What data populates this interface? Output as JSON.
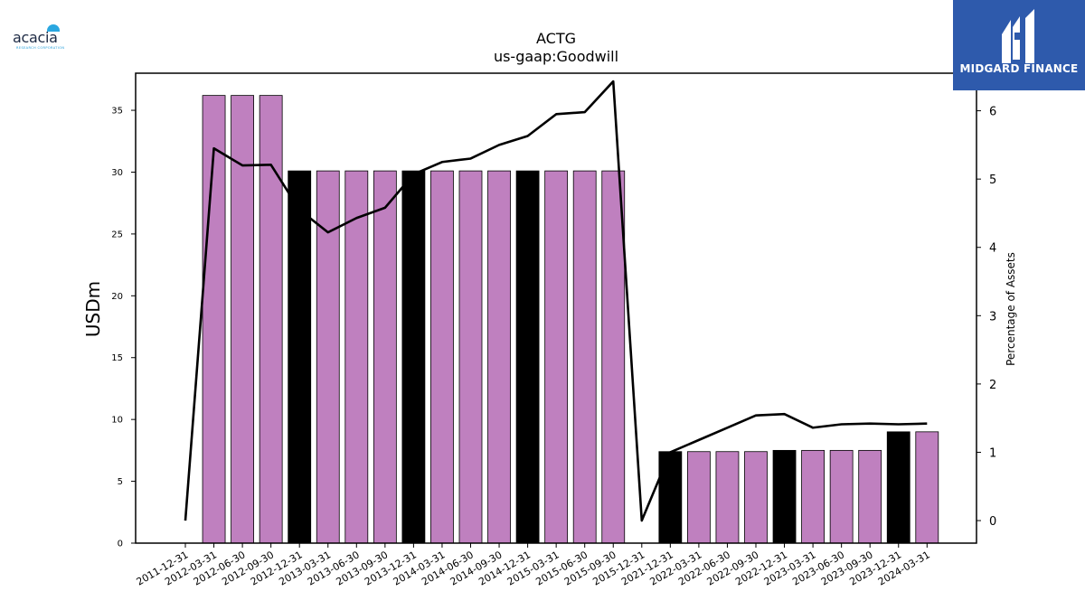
{
  "chart_data": {
    "type": "bar",
    "title": "ACTG",
    "subtitle": "us-gaap:Goodwill",
    "ylabel": "USDm",
    "ylabel_right": "Percentage of Assets",
    "ylim": [
      0,
      38
    ],
    "ylim_right": [
      -0.33,
      6.55
    ],
    "yticks": [
      0,
      5,
      10,
      15,
      20,
      25,
      30,
      35
    ],
    "yticks_right": [
      0,
      1,
      2,
      3,
      4,
      5,
      6
    ],
    "grid": false,
    "categories": [
      "2011-12-31",
      "2012-03-31",
      "2012-06-30",
      "2012-09-30",
      "2012-12-31",
      "2013-03-31",
      "2013-06-30",
      "2013-09-30",
      "2013-12-31",
      "2014-03-31",
      "2014-06-30",
      "2014-09-30",
      "2014-12-31",
      "2015-03-31",
      "2015-06-30",
      "2015-09-30",
      "2015-12-31",
      "2021-12-31",
      "2022-03-31",
      "2022-06-30",
      "2022-09-30",
      "2022-12-31",
      "2023-03-31",
      "2023-06-30",
      "2023-09-30",
      "2023-12-31",
      "2024-03-31"
    ],
    "series": [
      {
        "kind": "bar",
        "axis": "left",
        "values": [
          null,
          36.2,
          36.2,
          36.2,
          30.1,
          30.1,
          30.1,
          30.1,
          30.1,
          30.1,
          30.1,
          30.1,
          30.1,
          30.1,
          30.1,
          30.1,
          null,
          7.4,
          7.4,
          7.4,
          7.4,
          7.5,
          7.5,
          7.5,
          7.5,
          9.0,
          9.0
        ],
        "annual": [
          false,
          false,
          false,
          false,
          true,
          false,
          false,
          false,
          true,
          false,
          false,
          false,
          true,
          false,
          false,
          false,
          false,
          true,
          false,
          false,
          false,
          true,
          false,
          false,
          false,
          true,
          false
        ]
      },
      {
        "kind": "line",
        "axis": "right",
        "values": [
          0.0,
          5.45,
          5.2,
          5.21,
          4.55,
          4.22,
          4.43,
          4.58,
          5.07,
          5.25,
          5.3,
          5.5,
          5.63,
          5.95,
          5.98,
          6.43,
          0.0,
          1.0,
          1.18,
          1.36,
          1.54,
          1.56,
          1.36,
          1.41,
          1.42,
          1.41,
          1.42
        ]
      }
    ],
    "colors": {
      "quarterly_bar": "#bf80bf",
      "annual_bar": "#000000",
      "line": "#000000",
      "bar_edge": "#000000"
    }
  },
  "logos": {
    "left": {
      "text": "acacia",
      "subtext": "RESEARCH CORPORATION"
    },
    "right": {
      "text": "MIDGARD FINANCE",
      "background": "#2e5aac"
    }
  }
}
